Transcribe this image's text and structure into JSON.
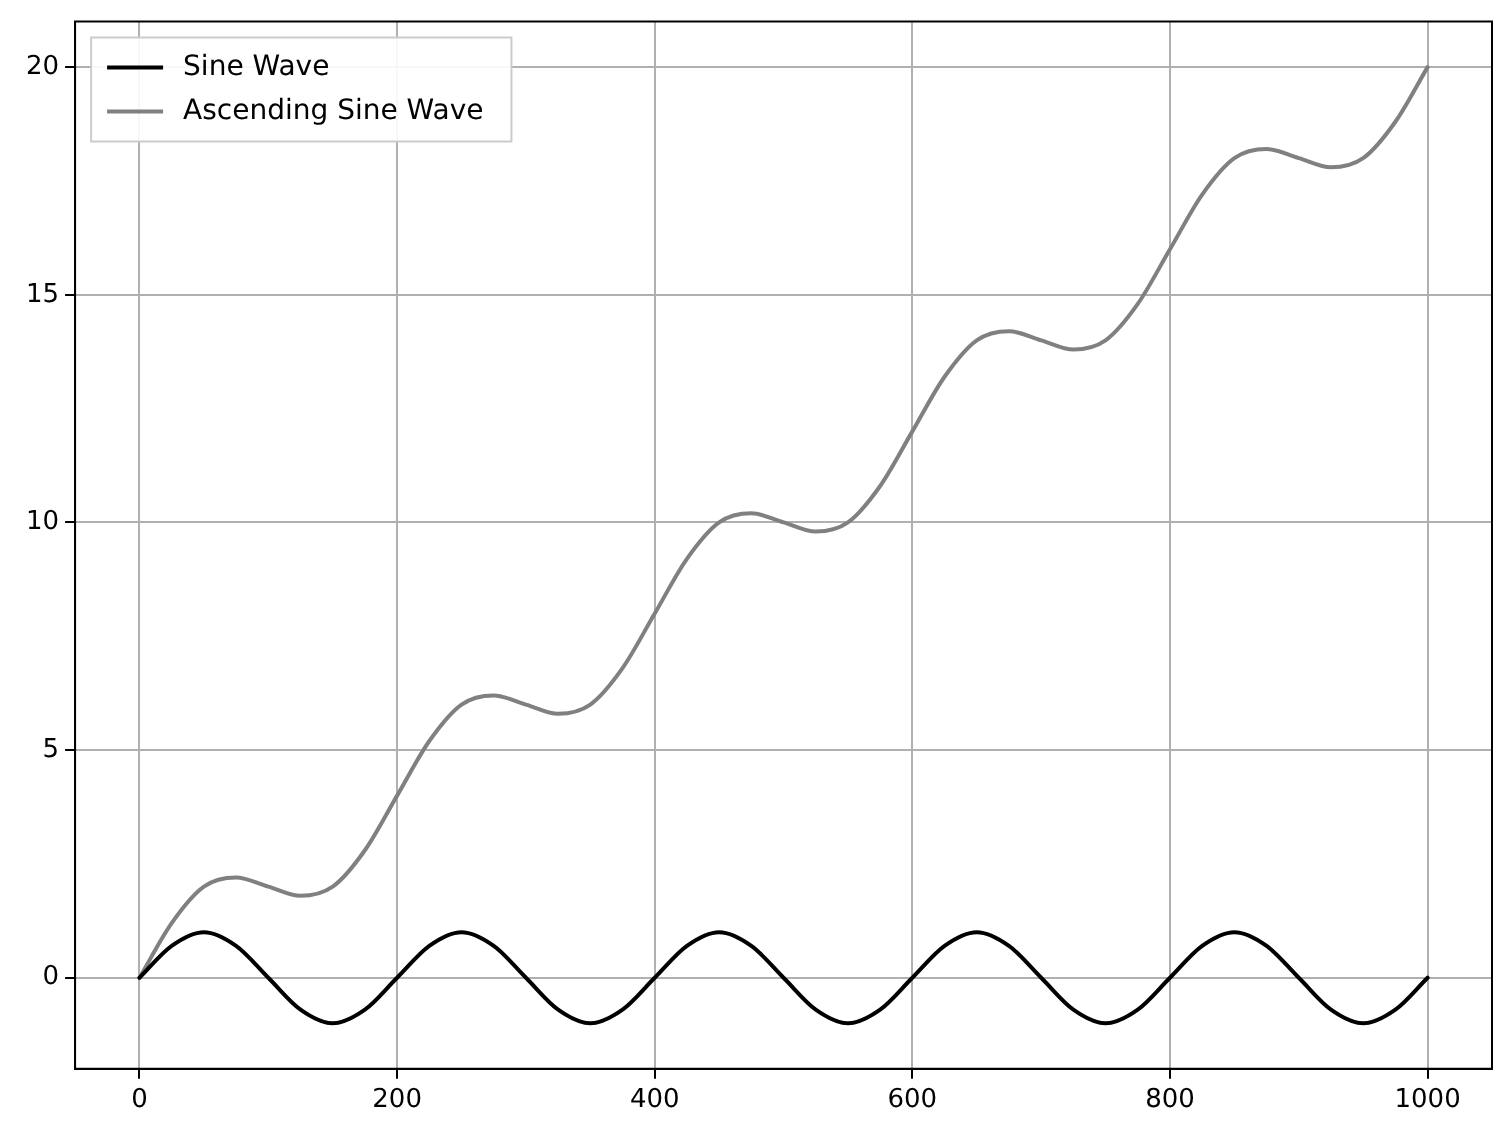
{
  "chart_data": {
    "type": "line",
    "x": [
      0,
      25,
      50,
      75,
      100,
      125,
      150,
      175,
      200,
      225,
      250,
      275,
      300,
      325,
      350,
      375,
      400,
      425,
      450,
      475,
      500,
      525,
      550,
      575,
      600,
      625,
      650,
      675,
      700,
      725,
      750,
      775,
      800,
      825,
      850,
      875,
      900,
      925,
      950,
      975,
      1000
    ],
    "series": [
      {
        "name": "Sine Wave",
        "color": "#000000",
        "values": [
          0,
          0.7,
          1,
          0.7,
          0,
          -0.7,
          -1,
          -0.7,
          0,
          0.7,
          1,
          0.7,
          0,
          -0.7,
          -1,
          -0.7,
          0,
          0.7,
          1,
          0.7,
          0,
          -0.7,
          -1,
          -0.7,
          0,
          0.7,
          1,
          0.7,
          0,
          -0.7,
          -1,
          -0.7,
          0,
          0.7,
          1,
          0.7,
          0,
          -0.7,
          -1,
          -0.7,
          0
        ]
      },
      {
        "name": "Ascending Sine Wave",
        "color": "#808080",
        "values": [
          0,
          1.2,
          2,
          2.2,
          2,
          1.8,
          2,
          2.8,
          4,
          5.2,
          6,
          6.2,
          6,
          5.8,
          6,
          6.8,
          8,
          9.2,
          10,
          10.2,
          10,
          9.8,
          10,
          10.8,
          12,
          13.2,
          14,
          14.2,
          14,
          13.8,
          14,
          14.8,
          16,
          17.2,
          18,
          18.2,
          18,
          17.8,
          18,
          18.8,
          20
        ]
      }
    ],
    "xlim": [
      -50,
      1050
    ],
    "xticks": [
      0,
      200,
      400,
      600,
      800,
      1000
    ],
    "ylim": [
      -2,
      21
    ],
    "yticks": [
      0,
      5,
      10,
      15,
      20
    ],
    "grid": true,
    "legend": "top left",
    "marker": "none",
    "line_style": "solid"
  }
}
